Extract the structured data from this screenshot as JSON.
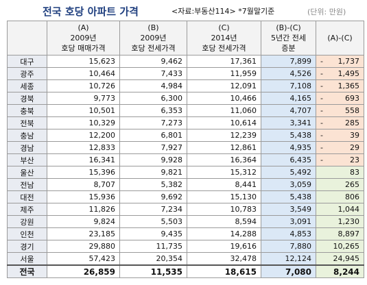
{
  "header": {
    "title": "전국 호당 아파트 가격",
    "source": "<자료:부동산114> *7월말기준",
    "unit": "(단위: 만원)"
  },
  "table": {
    "columns": [
      [
        "(A)",
        "2009년",
        "호당 매매가격"
      ],
      [
        "(B)",
        "2009년",
        "호당 전세가격"
      ],
      [
        "(C)",
        "2014년",
        "호당 전세가격"
      ],
      [
        "(B)-(C)",
        "5년간 전세",
        "증분"
      ],
      [
        "(A)-(C)"
      ]
    ],
    "rows": [
      [
        "대구",
        "15,623",
        "9,462",
        "17,361",
        "7,899",
        {
          "sign": "-",
          "amount": "1,737"
        }
      ],
      [
        "광주",
        "10,464",
        "7,433",
        "11,959",
        "4,526",
        {
          "sign": "-",
          "amount": "1,495"
        }
      ],
      [
        "세종",
        "10,726",
        "4,984",
        "12,091",
        "7,108",
        {
          "sign": "-",
          "amount": "1,365"
        }
      ],
      [
        "경북",
        "9,773",
        "6,300",
        "10,466",
        "4,165",
        {
          "sign": "-",
          "amount": "693"
        }
      ],
      [
        "충북",
        "10,501",
        "6,353",
        "11,060",
        "4,707",
        {
          "sign": "-",
          "amount": "558"
        }
      ],
      [
        "전북",
        "10,329",
        "7,273",
        "10,614",
        "3,341",
        {
          "sign": "-",
          "amount": "285"
        }
      ],
      [
        "충남",
        "12,200",
        "6,801",
        "12,239",
        "5,438",
        {
          "sign": "-",
          "amount": "39"
        }
      ],
      [
        "경남",
        "12,833",
        "7,927",
        "12,861",
        "4,935",
        {
          "sign": "-",
          "amount": "29"
        }
      ],
      [
        "부산",
        "16,341",
        "9,928",
        "16,364",
        "6,435",
        {
          "sign": "-",
          "amount": "23"
        }
      ],
      [
        "울산",
        "15,396",
        "9,821",
        "15,312",
        "5,492",
        "83"
      ],
      [
        "전남",
        "8,707",
        "5,382",
        "8,441",
        "3,059",
        "265"
      ],
      [
        "대전",
        "15,936",
        "9,692",
        "15,130",
        "5,438",
        "806"
      ],
      [
        "제주",
        "11,826",
        "7,234",
        "10,783",
        "3,549",
        "1,044"
      ],
      [
        "강원",
        "9,824",
        "5,503",
        "8,594",
        "3,091",
        "1,230"
      ],
      [
        "인천",
        "23,185",
        "9,435",
        "14,288",
        "4,853",
        "8,897"
      ],
      [
        "경기",
        "29,880",
        "11,735",
        "19,616",
        "7,880",
        "10,265"
      ],
      [
        "서울",
        "57,423",
        "20,354",
        "32,478",
        "12,124",
        "24,945"
      ],
      [
        "전국",
        "26,859",
        "11,535",
        "18,615",
        "7,080",
        "8,244"
      ]
    ]
  }
}
